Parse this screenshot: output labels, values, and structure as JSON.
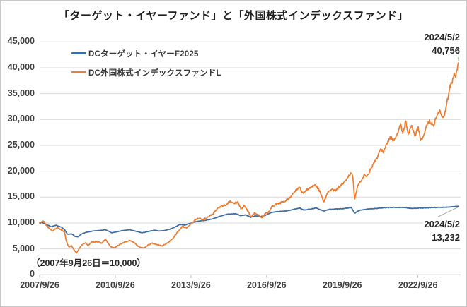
{
  "chart_data": {
    "type": "line",
    "title": "「ターゲット・イヤーファンド」と「外国株式インデックスファンド」",
    "baseline_note": "（2007年9月26日＝10,000）",
    "grid_on": true,
    "legend_position": "top-left-inside",
    "grid_color": "#d9d9d9",
    "axis_color": "#bfbfbf",
    "leader_color": "#a6a6a6",
    "x_axis": {
      "range_years": [
        2007.739,
        2024.337
      ],
      "ticks": [
        {
          "label": "2007/9/26",
          "t": 2007.739
        },
        {
          "label": "2010/9/26",
          "t": 2010.739
        },
        {
          "label": "2013/9/26",
          "t": 2013.739
        },
        {
          "label": "2016/9/26",
          "t": 2016.739
        },
        {
          "label": "2019/9/26",
          "t": 2019.739
        },
        {
          "label": "2022/9/26",
          "t": 2022.739
        }
      ]
    },
    "y_axis": {
      "range": [
        0,
        45000
      ],
      "step": 5000,
      "ticks": [
        {
          "label": "45,000",
          "value": 45000
        },
        {
          "label": "40,000",
          "value": 40000
        },
        {
          "label": "35,000",
          "value": 35000
        },
        {
          "label": "30,000",
          "value": 30000
        },
        {
          "label": "25,000",
          "value": 25000
        },
        {
          "label": "20,000",
          "value": 20000
        },
        {
          "label": "15,000",
          "value": 15000
        },
        {
          "label": "10,000",
          "value": 10000
        },
        {
          "label": "5,000",
          "value": 5000
        },
        {
          "label": "0",
          "value": 0
        }
      ]
    },
    "series": [
      {
        "id": "target-year-f2025",
        "name": "DCターゲット・イヤーF2025",
        "color": "#3e6da5",
        "jitter": 0.004,
        "seed": 7,
        "end_label": {
          "date": "2024/5/2",
          "value": "13,232"
        },
        "points": [
          [
            2007.74,
            10000
          ],
          [
            2007.85,
            10100
          ],
          [
            2008.0,
            9700
          ],
          [
            2008.2,
            9300
          ],
          [
            2008.4,
            9550
          ],
          [
            2008.6,
            9200
          ],
          [
            2008.73,
            8700
          ],
          [
            2008.85,
            7800
          ],
          [
            2009.0,
            7900
          ],
          [
            2009.15,
            7400
          ],
          [
            2009.27,
            7300
          ],
          [
            2009.4,
            7900
          ],
          [
            2009.6,
            8200
          ],
          [
            2009.8,
            8400
          ],
          [
            2010.0,
            8500
          ],
          [
            2010.35,
            8700
          ],
          [
            2010.6,
            8100
          ],
          [
            2010.8,
            8300
          ],
          [
            2011.0,
            8500
          ],
          [
            2011.3,
            8700
          ],
          [
            2011.55,
            8400
          ],
          [
            2011.8,
            8100
          ],
          [
            2012.0,
            8300
          ],
          [
            2012.3,
            8600
          ],
          [
            2012.5,
            8450
          ],
          [
            2012.7,
            8550
          ],
          [
            2012.9,
            8800
          ],
          [
            2013.1,
            9200
          ],
          [
            2013.3,
            9700
          ],
          [
            2013.5,
            9600
          ],
          [
            2013.7,
            9900
          ],
          [
            2013.9,
            10200
          ],
          [
            2014.1,
            10400
          ],
          [
            2014.3,
            10500
          ],
          [
            2014.6,
            10800
          ],
          [
            2014.9,
            11300
          ],
          [
            2015.2,
            11700
          ],
          [
            2015.5,
            11800
          ],
          [
            2015.72,
            11400
          ],
          [
            2015.9,
            11600
          ],
          [
            2016.1,
            11100
          ],
          [
            2016.3,
            11400
          ],
          [
            2016.5,
            11200
          ],
          [
            2016.7,
            11500
          ],
          [
            2016.9,
            12000
          ],
          [
            2017.2,
            12200
          ],
          [
            2017.5,
            12300
          ],
          [
            2017.8,
            12600
          ],
          [
            2018.05,
            12900
          ],
          [
            2018.2,
            12500
          ],
          [
            2018.5,
            12700
          ],
          [
            2018.7,
            12900
          ],
          [
            2018.9,
            12500
          ],
          [
            2019.0,
            12300
          ],
          [
            2019.2,
            12600
          ],
          [
            2019.4,
            12700
          ],
          [
            2019.6,
            12700
          ],
          [
            2019.8,
            12800
          ],
          [
            2020.0,
            12900
          ],
          [
            2020.1,
            13000
          ],
          [
            2020.23,
            11900
          ],
          [
            2020.4,
            12400
          ],
          [
            2020.6,
            12600
          ],
          [
            2020.8,
            12700
          ],
          [
            2021.0,
            12800
          ],
          [
            2021.3,
            12900
          ],
          [
            2021.6,
            13000
          ],
          [
            2021.9,
            13000
          ],
          [
            2022.2,
            13000
          ],
          [
            2022.5,
            12800
          ],
          [
            2022.8,
            12900
          ],
          [
            2023.1,
            12900
          ],
          [
            2023.4,
            13000
          ],
          [
            2023.7,
            13000
          ],
          [
            2024.0,
            13100
          ],
          [
            2024.337,
            13232
          ]
        ]
      },
      {
        "id": "foreign-equity-index-l",
        "name": "DC外国株式インデックスファンドL",
        "color": "#ed7d31",
        "jitter": 0.012,
        "seed": 13,
        "end_label": {
          "date": "2024/5/2",
          "value": "40,756"
        },
        "points": [
          [
            2007.74,
            10000
          ],
          [
            2007.8,
            10300
          ],
          [
            2007.88,
            10450
          ],
          [
            2008.0,
            9600
          ],
          [
            2008.1,
            9050
          ],
          [
            2008.25,
            8500
          ],
          [
            2008.45,
            9150
          ],
          [
            2008.6,
            8700
          ],
          [
            2008.72,
            8300
          ],
          [
            2008.8,
            6500
          ],
          [
            2008.9,
            5300
          ],
          [
            2009.0,
            5600
          ],
          [
            2009.1,
            4800
          ],
          [
            2009.2,
            4200
          ],
          [
            2009.3,
            5000
          ],
          [
            2009.42,
            5800
          ],
          [
            2009.55,
            6200
          ],
          [
            2009.65,
            5600
          ],
          [
            2009.8,
            6300
          ],
          [
            2010.0,
            6400
          ],
          [
            2010.2,
            6100
          ],
          [
            2010.35,
            6850
          ],
          [
            2010.55,
            5400
          ],
          [
            2010.7,
            5200
          ],
          [
            2010.9,
            5800
          ],
          [
            2011.1,
            6300
          ],
          [
            2011.3,
            6600
          ],
          [
            2011.5,
            6200
          ],
          [
            2011.65,
            5500
          ],
          [
            2011.85,
            5100
          ],
          [
            2012.0,
            5600
          ],
          [
            2012.2,
            6100
          ],
          [
            2012.4,
            5800
          ],
          [
            2012.6,
            5600
          ],
          [
            2012.8,
            6100
          ],
          [
            2013.0,
            6900
          ],
          [
            2013.2,
            8200
          ],
          [
            2013.4,
            9300
          ],
          [
            2013.55,
            9000
          ],
          [
            2013.75,
            9900
          ],
          [
            2013.95,
            10700
          ],
          [
            2014.05,
            11000
          ],
          [
            2014.2,
            10600
          ],
          [
            2014.4,
            11100
          ],
          [
            2014.6,
            11700
          ],
          [
            2014.8,
            12800
          ],
          [
            2014.95,
            13300
          ],
          [
            2015.1,
            13400
          ],
          [
            2015.3,
            14200
          ],
          [
            2015.45,
            13800
          ],
          [
            2015.6,
            14000
          ],
          [
            2015.72,
            12700
          ],
          [
            2015.85,
            13300
          ],
          [
            2016.0,
            12300
          ],
          [
            2016.12,
            11200
          ],
          [
            2016.28,
            12000
          ],
          [
            2016.42,
            11500
          ],
          [
            2016.55,
            11100
          ],
          [
            2016.7,
            11900
          ],
          [
            2016.85,
            12200
          ],
          [
            2016.95,
            13200
          ],
          [
            2017.1,
            13600
          ],
          [
            2017.3,
            13900
          ],
          [
            2017.5,
            14300
          ],
          [
            2017.7,
            15100
          ],
          [
            2017.9,
            16300
          ],
          [
            2018.05,
            17100
          ],
          [
            2018.15,
            15700
          ],
          [
            2018.3,
            16300
          ],
          [
            2018.5,
            16900
          ],
          [
            2018.65,
            17300
          ],
          [
            2018.78,
            16700
          ],
          [
            2018.9,
            15600
          ],
          [
            2019.0,
            13900
          ],
          [
            2019.15,
            15800
          ],
          [
            2019.3,
            16500
          ],
          [
            2019.45,
            16200
          ],
          [
            2019.6,
            16900
          ],
          [
            2019.8,
            17700
          ],
          [
            2019.95,
            18700
          ],
          [
            2020.1,
            19900
          ],
          [
            2020.16,
            18700
          ],
          [
            2020.23,
            14500
          ],
          [
            2020.35,
            17300
          ],
          [
            2020.5,
            18300
          ],
          [
            2020.62,
            19400
          ],
          [
            2020.72,
            18900
          ],
          [
            2020.85,
            20300
          ],
          [
            2021.0,
            21600
          ],
          [
            2021.15,
            22900
          ],
          [
            2021.27,
            24300
          ],
          [
            2021.37,
            23600
          ],
          [
            2021.5,
            25300
          ],
          [
            2021.65,
            26600
          ],
          [
            2021.8,
            25900
          ],
          [
            2021.95,
            27700
          ],
          [
            2022.05,
            28900
          ],
          [
            2022.15,
            27400
          ],
          [
            2022.25,
            29700
          ],
          [
            2022.35,
            27200
          ],
          [
            2022.5,
            28800
          ],
          [
            2022.62,
            26900
          ],
          [
            2022.75,
            28400
          ],
          [
            2022.85,
            25900
          ],
          [
            2023.0,
            27400
          ],
          [
            2023.1,
            28900
          ],
          [
            2023.2,
            29800
          ],
          [
            2023.35,
            28700
          ],
          [
            2023.5,
            31000
          ],
          [
            2023.6,
            31600
          ],
          [
            2023.7,
            30400
          ],
          [
            2023.8,
            31000
          ],
          [
            2023.9,
            33600
          ],
          [
            2024.0,
            36200
          ],
          [
            2024.1,
            37200
          ],
          [
            2024.18,
            38900
          ],
          [
            2024.24,
            38200
          ],
          [
            2024.337,
            40756
          ]
        ]
      }
    ]
  }
}
